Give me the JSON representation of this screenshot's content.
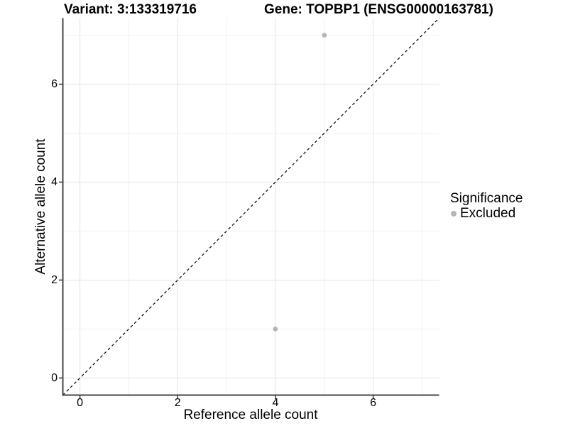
{
  "titles": {
    "variant": "Variant: 3:133319716",
    "gene": "Gene: TOPBP1 (ENSG00000163781)"
  },
  "axes": {
    "x_label": "Reference allele count",
    "y_label": "Alternative allele count",
    "x_tick_labels": [
      "0",
      "2",
      "4",
      "6"
    ],
    "y_tick_labels": [
      "0",
      "2",
      "4",
      "6"
    ]
  },
  "legend": {
    "title": "Significance",
    "items": [
      {
        "label": "Excluded",
        "color": "#b5b5b5"
      }
    ]
  },
  "chart_data": {
    "type": "scatter",
    "title": "Variant: 3:133319716 | Gene: TOPBP1 (ENSG00000163781)",
    "xlabel": "Reference allele count",
    "ylabel": "Alternative allele count",
    "xlim": [
      -0.35,
      7.35
    ],
    "ylim": [
      -0.35,
      7.35
    ],
    "x_major_ticks": [
      0,
      2,
      4,
      6
    ],
    "y_major_ticks": [
      0,
      2,
      4,
      6
    ],
    "x_minor_gridlines": [
      1,
      3,
      5,
      7
    ],
    "y_minor_gridlines": [
      1,
      3,
      5,
      7
    ],
    "grid": "major+minor",
    "legend_position": "right",
    "legend_title": "Significance",
    "series": [
      {
        "name": "Excluded",
        "color": "#b5b5b5",
        "marker": "circle",
        "points": [
          {
            "x": 5,
            "y": 7
          },
          {
            "x": 4,
            "y": 1
          }
        ]
      }
    ],
    "reference_line": {
      "kind": "identity y=x",
      "style": "dashed",
      "color": "#000000"
    }
  }
}
